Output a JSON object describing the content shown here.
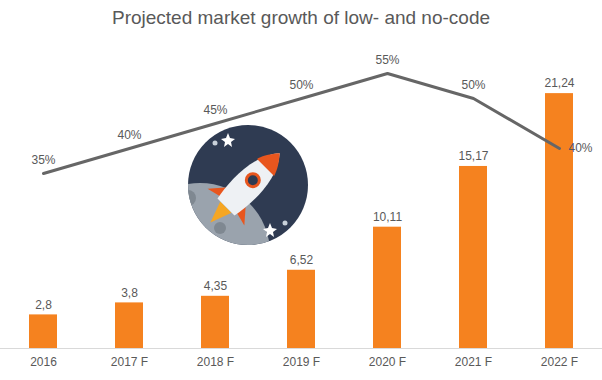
{
  "chart_data": {
    "type": "bar",
    "title": "Projected market growth of low- and no-code",
    "categories": [
      "2016",
      "2017 F",
      "2018 F",
      "2019 F",
      "2020 F",
      "2021 F",
      "2022 F"
    ],
    "series": [
      {
        "type": "bar",
        "color": "#f5821f",
        "values": [
          2.8,
          3.8,
          4.35,
          6.52,
          10.11,
          15.17,
          21.24
        ],
        "value_labels": [
          "2,8",
          "3,8",
          "4,35",
          "6,52",
          "10,11",
          "15,17",
          "21,24"
        ]
      },
      {
        "type": "line",
        "axis": "y2",
        "color": "#666666",
        "values": [
          35,
          40,
          45,
          50,
          55,
          50,
          40
        ],
        "value_labels": [
          "35%",
          "40%",
          "45%",
          "50%",
          "55%",
          "50%",
          "40%"
        ]
      }
    ],
    "ylim": [
      0,
      25
    ],
    "y2lim": [
      0,
      60
    ],
    "data_labels": true,
    "tick_labels": "x",
    "grid": false
  }
}
